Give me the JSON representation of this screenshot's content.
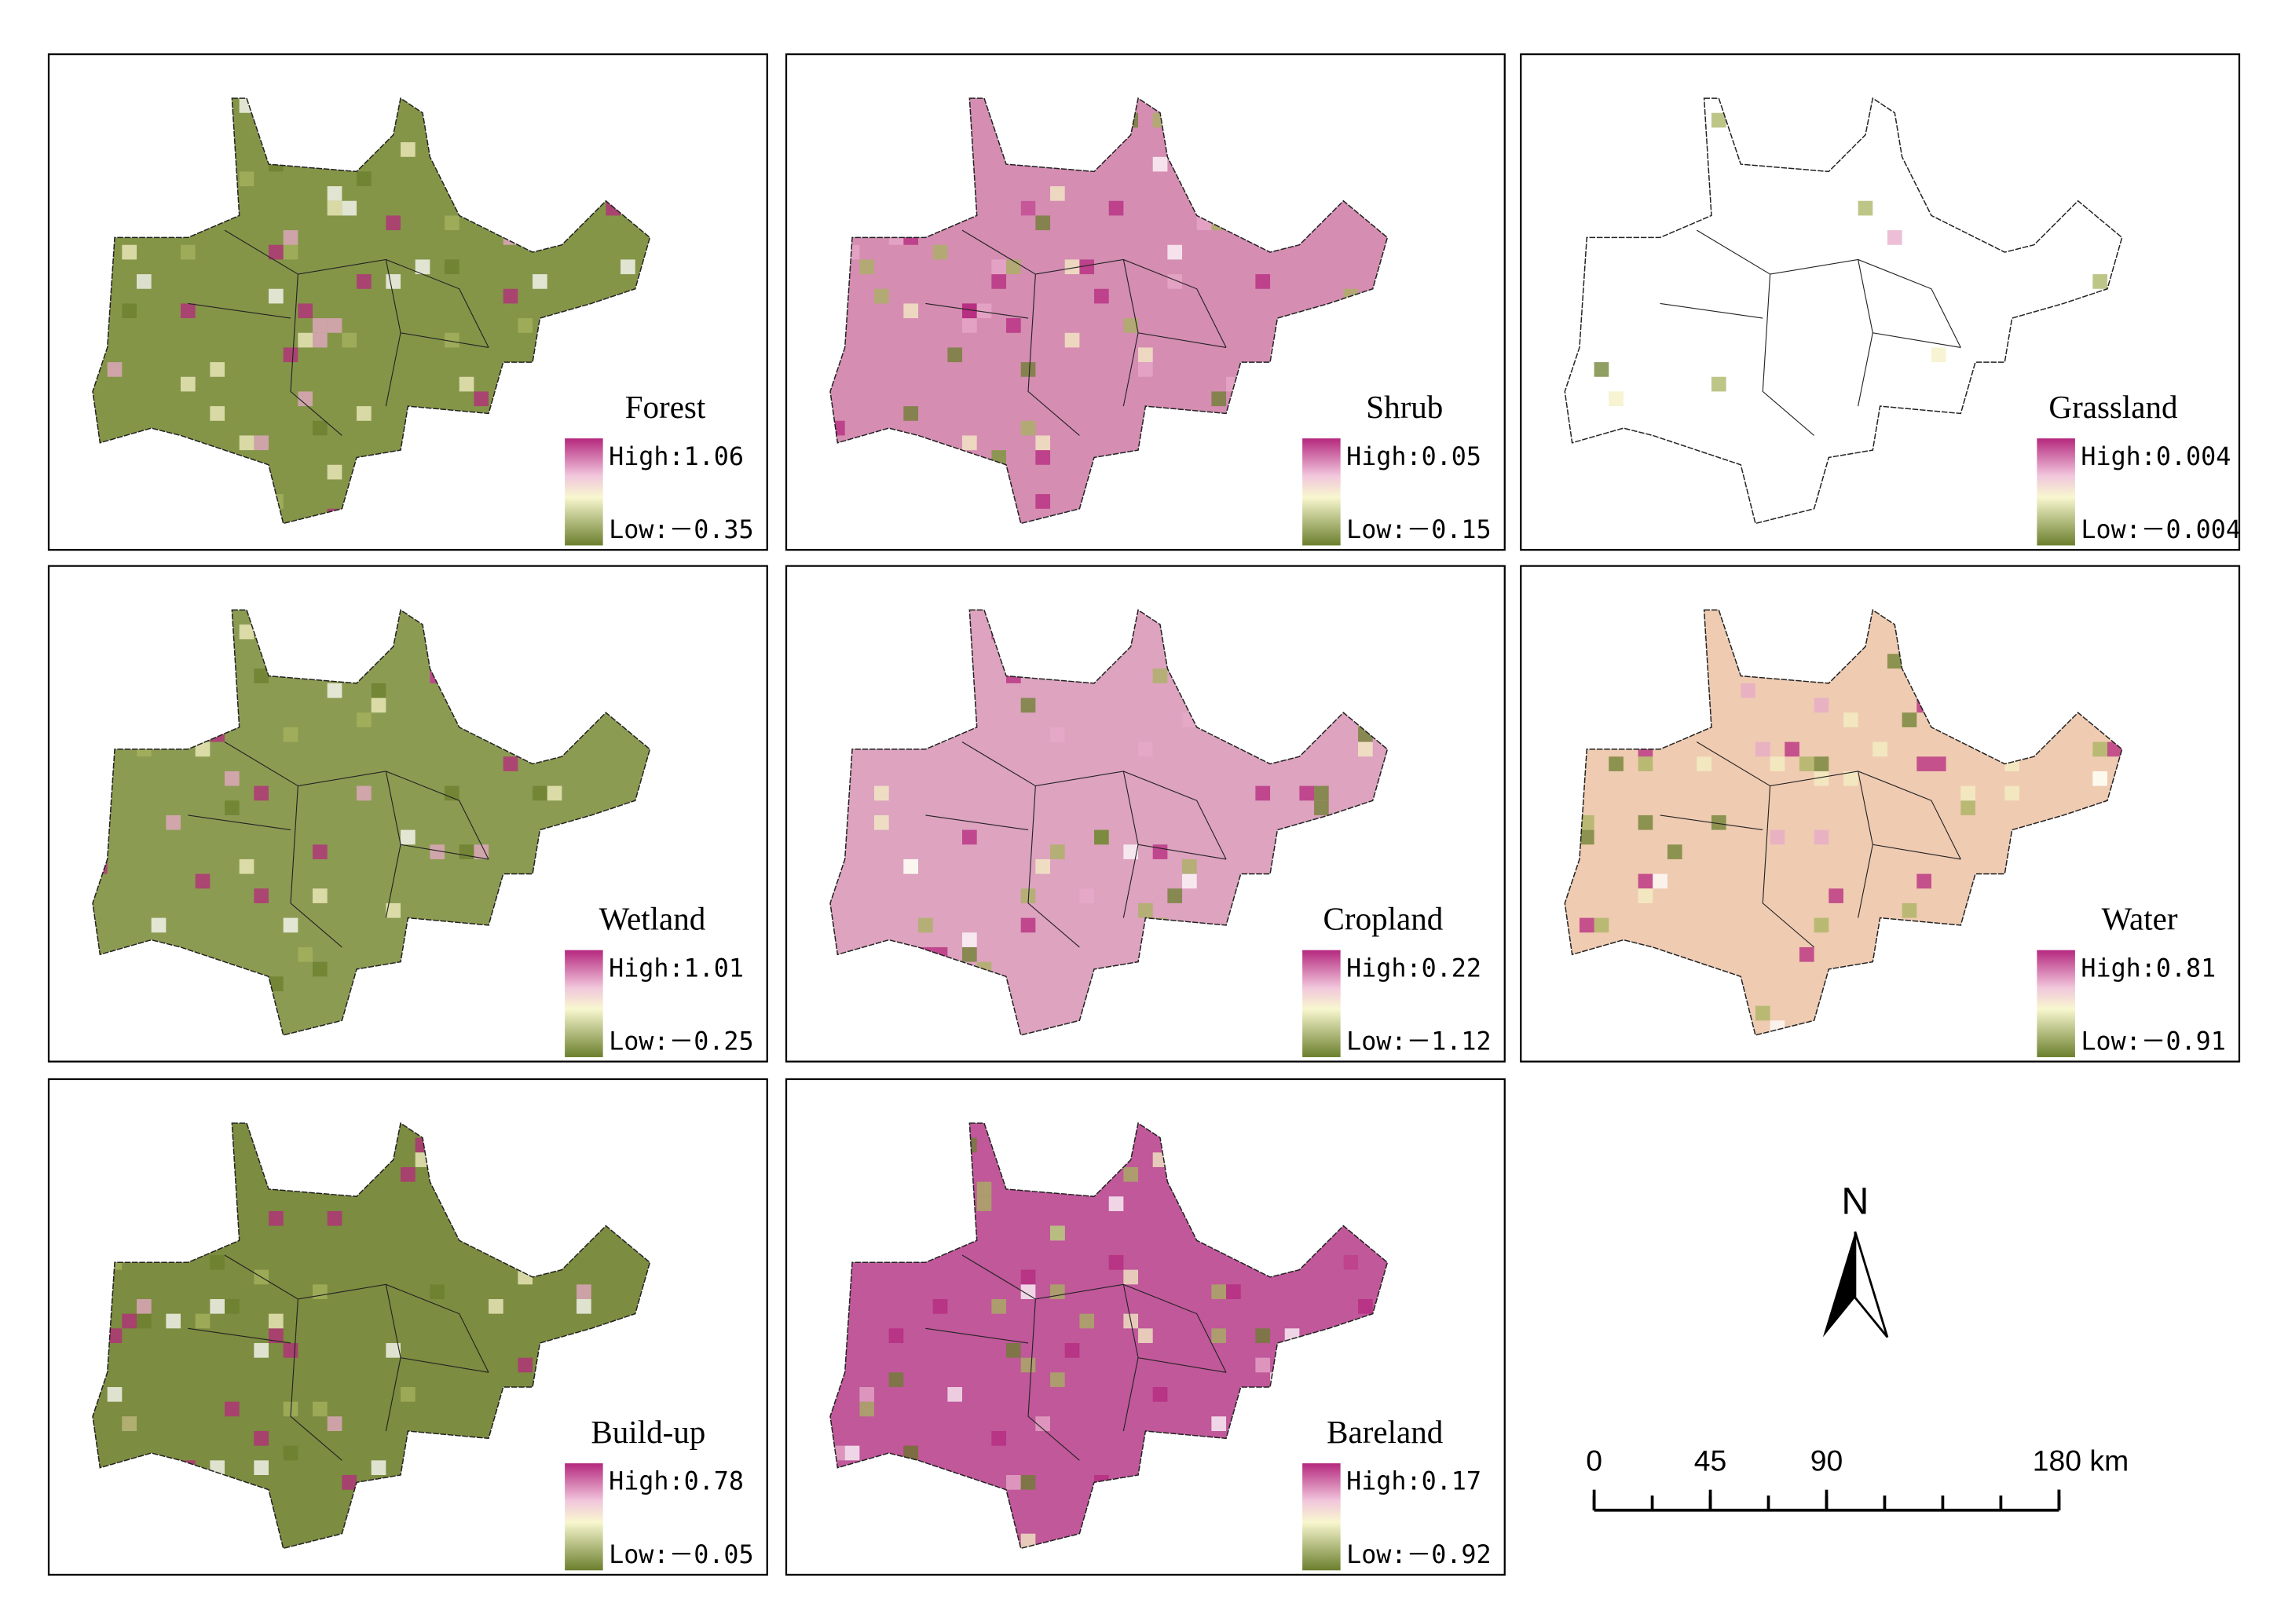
{
  "panels": [
    {
      "title": "Forest",
      "high": "High:1.06",
      "low": "Low:－0.35",
      "color": "#849548"
    },
    {
      "title": "Shrub",
      "high": "High:0.05",
      "low": "Low:－0.15",
      "color": "#d58db2"
    },
    {
      "title": "Grassland",
      "high": "High:0.004",
      "low": "Low:－0.004",
      "color": "#ffffff"
    },
    {
      "title": "Wetland",
      "high": "High:1.01",
      "low": "Low:－0.25",
      "color": "#8c9b52"
    },
    {
      "title": "Cropland",
      "high": "High:0.22",
      "low": "Low:－1.12",
      "color": "#dda3bf"
    },
    {
      "title": "Water",
      "high": "High:0.81",
      "low": "Low:－0.91",
      "color": "#efcbb2"
    },
    {
      "title": "Build-up",
      "high": "High:0.78",
      "low": "Low:－0.05",
      "color": "#7c8c40"
    },
    {
      "title": "Bareland",
      "high": "High:0.17",
      "low": "Low:－0.92",
      "color": "#c0589a"
    }
  ],
  "north": "N",
  "scale_bar": {
    "ticks": [
      0,
      45,
      90,
      {
        "value": 180,
        "label": "180 km"
      }
    ],
    "max": 180
  }
}
